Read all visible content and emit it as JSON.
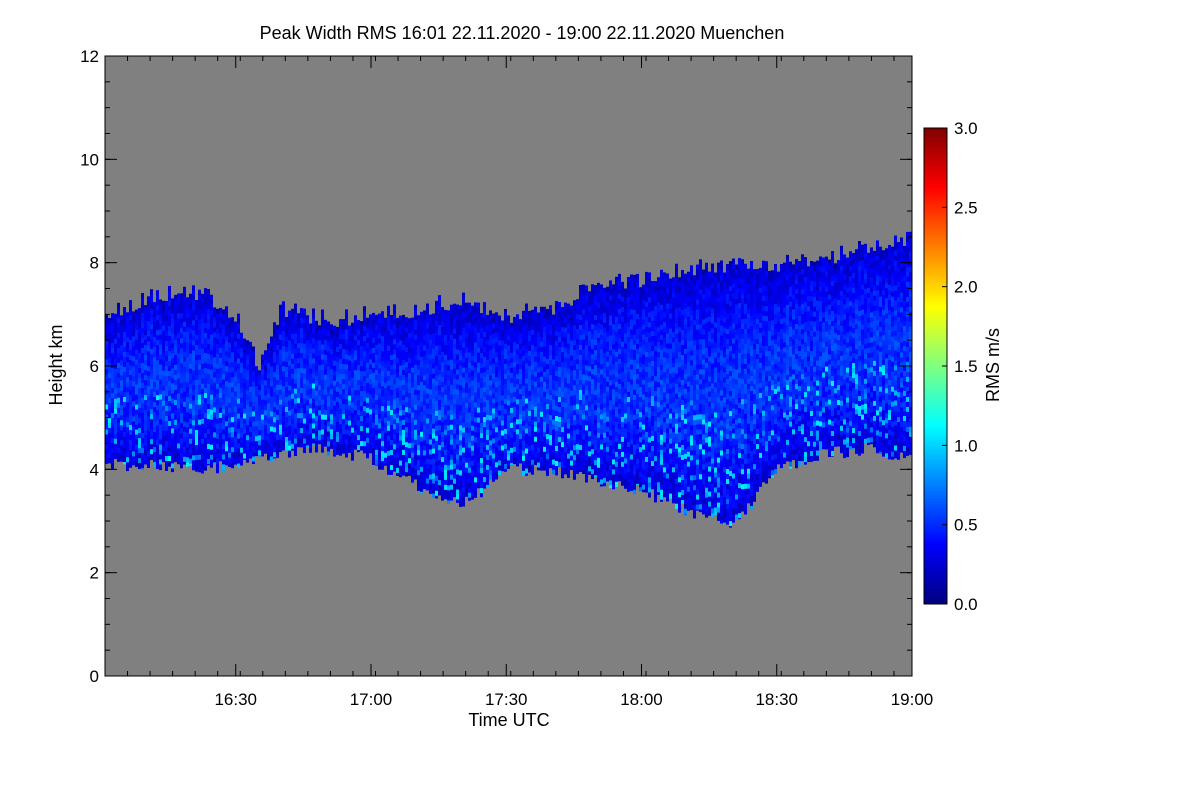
{
  "chart_data": {
    "type": "heatmap",
    "title": "Peak Width RMS   16:01 22.11.2020 - 19:00 22.11.2020 Muenchen",
    "xlabel": "Time UTC",
    "ylabel": "Height km",
    "xlim": [
      "16:01",
      "19:00"
    ],
    "ylim": [
      0,
      12
    ],
    "x_tick_labels": [
      "16:30",
      "17:00",
      "17:30",
      "18:00",
      "18:30",
      "19:00"
    ],
    "x_tick_minutes": [
      990,
      1020,
      1050,
      1080,
      1110,
      1140
    ],
    "x_range_minutes": [
      961,
      1140
    ],
    "y_tick_labels": [
      "0",
      "2",
      "4",
      "6",
      "8",
      "10",
      "12"
    ],
    "y_ticks": [
      0,
      2,
      4,
      6,
      8,
      10,
      12
    ],
    "colorbar": {
      "label": "RMS m/s",
      "range": [
        0,
        3.0
      ],
      "tick_labels": [
        "0.0",
        "0.5",
        "1.0",
        "1.5",
        "2.0",
        "2.5",
        "3.0"
      ],
      "ticks": [
        0,
        0.5,
        1.0,
        1.5,
        2.0,
        2.5,
        3.0
      ],
      "colormap": "jet",
      "colors": [
        "#00007f",
        "#0000ff",
        "#007fff",
        "#00ffff",
        "#7fff7f",
        "#ffff00",
        "#ff7f00",
        "#ff0000",
        "#7f0000"
      ]
    },
    "no_data_color": "#808080",
    "cloud_layer": {
      "time_minutes": [
        961,
        970,
        980,
        990,
        995,
        1000,
        1010,
        1020,
        1030,
        1040,
        1050,
        1060,
        1070,
        1080,
        1090,
        1100,
        1110,
        1120,
        1130,
        1140
      ],
      "top_km": [
        7.0,
        7.3,
        7.5,
        7.0,
        6.0,
        7.1,
        6.9,
        7.0,
        7.1,
        7.3,
        7.0,
        7.1,
        7.6,
        7.7,
        7.9,
        8.0,
        8.0,
        8.1,
        8.3,
        8.5
      ],
      "base_km": [
        4.1,
        4.1,
        4.0,
        4.1,
        4.2,
        4.3,
        4.4,
        4.2,
        3.7,
        3.3,
        4.0,
        4.0,
        3.8,
        3.6,
        3.2,
        2.9,
        4.0,
        4.3,
        4.4,
        4.2
      ],
      "typical_rms": 0.4,
      "max_rms": 1.1
    }
  }
}
